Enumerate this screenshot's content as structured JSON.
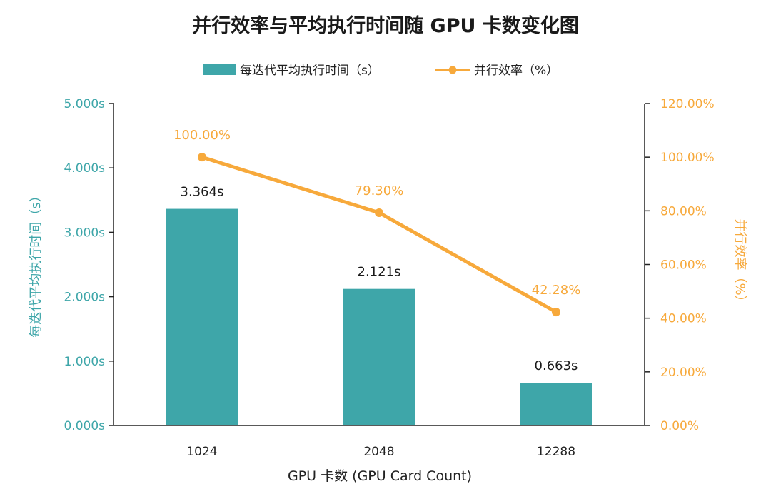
{
  "chart_data": {
    "type": "bar+line",
    "title": "并行效率与平均执行时间随 GPU 卡数变化图",
    "categories": [
      "1024",
      "2048",
      "12288"
    ],
    "xlabel": "GPU 卡数 (GPU Card Count)",
    "series": [
      {
        "name": "每迭代平均执行时间（s）",
        "type": "bar",
        "axis": "left",
        "values": [
          3.364,
          2.121,
          0.663
        ],
        "labels": [
          "3.364s",
          "2.121s",
          "0.663s"
        ],
        "color": "#3EA6A9"
      },
      {
        "name": "并行效率（%）",
        "type": "line",
        "axis": "right",
        "values": [
          100.0,
          79.3,
          42.28
        ],
        "labels": [
          "100.00%",
          "79.30%",
          "42.28%"
        ],
        "color": "#F7A93B"
      }
    ],
    "y_left": {
      "label": "每迭代平均执行时间（s）",
      "range": [
        0,
        5
      ],
      "ticks": [
        "0.000s",
        "1.000s",
        "2.000s",
        "3.000s",
        "4.000s",
        "5.000s"
      ],
      "color": "#3EA6A9"
    },
    "y_right": {
      "label": "并行效率（%）",
      "range": [
        0,
        120
      ],
      "ticks": [
        "0.00%",
        "20.00%",
        "40.00%",
        "60.00%",
        "80.00%",
        "100.00%",
        "120.00%"
      ],
      "color": "#F7A93B"
    },
    "grid": false,
    "legend_position": "top"
  }
}
